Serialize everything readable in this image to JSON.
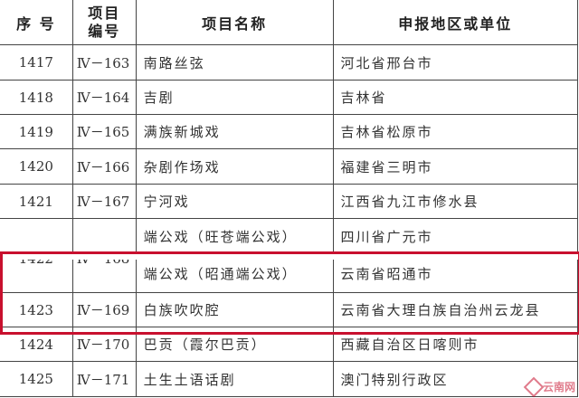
{
  "headers": {
    "seq": "序 号",
    "code": "项目\n编号",
    "name": "项目名称",
    "region": "申报地区或单位"
  },
  "rows": [
    {
      "seq": "1417",
      "code": "Ⅳ－163",
      "name": "南路丝弦",
      "region": "河北省邢台市"
    },
    {
      "seq": "1418",
      "code": "Ⅳ－164",
      "name": "吉剧",
      "region": "吉林省"
    },
    {
      "seq": "1419",
      "code": "Ⅳ－165",
      "name": "满族新城戏",
      "region": "吉林省松原市"
    },
    {
      "seq": "1420",
      "code": "Ⅳ－166",
      "name": "杂剧作场戏",
      "region": "福建省三明市"
    },
    {
      "seq": "1421",
      "code": "Ⅳ－167",
      "name": "宁河戏",
      "region": "江西省九江市修水县"
    }
  ],
  "merged_row": {
    "seq": "1422",
    "code": "Ⅳ－168",
    "items": [
      {
        "name": "端公戏（旺苍端公戏）",
        "region": "四川省广元市"
      },
      {
        "name": "端公戏（昭通端公戏）",
        "region": "云南省昭通市"
      }
    ]
  },
  "rows2": [
    {
      "seq": "1423",
      "code": "Ⅳ－169",
      "name": "白族吹吹腔",
      "region": "云南省大理白族自治州云龙县"
    },
    {
      "seq": "1424",
      "code": "Ⅳ－170",
      "name": "巴贡（霞尔巴贡）",
      "region": "西藏自治区日喀则市"
    },
    {
      "seq": "1425",
      "code": "Ⅳ－171",
      "name": "土生土语话剧",
      "region": "澳门特别行政区"
    }
  ],
  "highlight_color": "#c8102e",
  "watermark": "云南网"
}
